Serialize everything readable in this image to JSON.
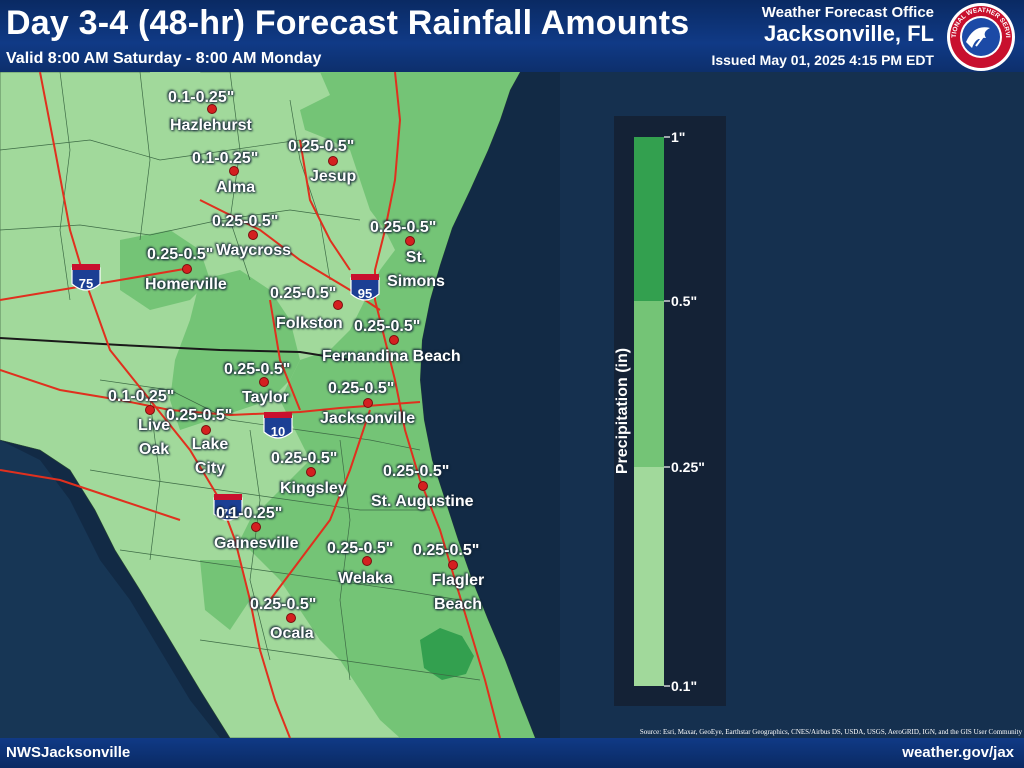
{
  "header": {
    "title": "Day 3-4 (48-hr) Forecast Rainfall Amounts",
    "valid": "Valid 8:00 AM Saturday - 8:00 AM Monday",
    "office_line1": "Weather Forecast Office",
    "office_line2": "Jacksonville, FL",
    "issued": "Issued May 01, 2025 4:15 PM EDT",
    "logo_text": "NATIONAL WEATHER SERVICE"
  },
  "footer": {
    "left": "NWSJacksonville",
    "right": "weather.gov/jax",
    "source": "Source: Esri, Maxar, GeoEye, Earthstar Geographics, CNES/Airbus DS, USDA, USGS, AeroGRID, IGN, and the GIS User Community"
  },
  "legend": {
    "title": "Precipitation (in)",
    "labels": [
      "1\"",
      "0.5\"",
      "0.25\"",
      "0.1\""
    ],
    "colors": [
      "#33a04f",
      "#74c476",
      "#a1d99b"
    ]
  },
  "highways": {
    "i75_north": "75",
    "i95": "95",
    "i10": "10",
    "i75_south": "75"
  },
  "cities": [
    {
      "name": "Hazlehurst",
      "amount": "0.1-0.25\""
    },
    {
      "name": "Alma",
      "amount": "0.1-0.25\""
    },
    {
      "name": "Jesup",
      "amount": "0.25-0.5\""
    },
    {
      "name": "Waycross",
      "amount": "0.25-0.5\""
    },
    {
      "name": "St. Simons",
      "amount": "0.25-0.5\""
    },
    {
      "name": "Homerville",
      "amount": "0.25-0.5\""
    },
    {
      "name": "Folkston",
      "amount": "0.25-0.5\""
    },
    {
      "name": "Fernandina Beach",
      "amount": "0.25-0.5\""
    },
    {
      "name": "Taylor",
      "amount": "0.25-0.5\""
    },
    {
      "name": "Jacksonville",
      "amount": "0.25-0.5\""
    },
    {
      "name": "Live Oak",
      "amount": "0.1-0.25\""
    },
    {
      "name": "Lake City",
      "amount": "0.25-0.5\""
    },
    {
      "name": "Kingsley",
      "amount": "0.25-0.5\""
    },
    {
      "name": "St. Augustine",
      "amount": "0.25-0.5\""
    },
    {
      "name": "Gainesville",
      "amount": "0.1-0.25\""
    },
    {
      "name": "Welaka",
      "amount": "0.25-0.5\""
    },
    {
      "name": "Flagler Beach",
      "amount": "0.25-0.5\""
    },
    {
      "name": "Ocala",
      "amount": "0.25-0.5\""
    }
  ]
}
